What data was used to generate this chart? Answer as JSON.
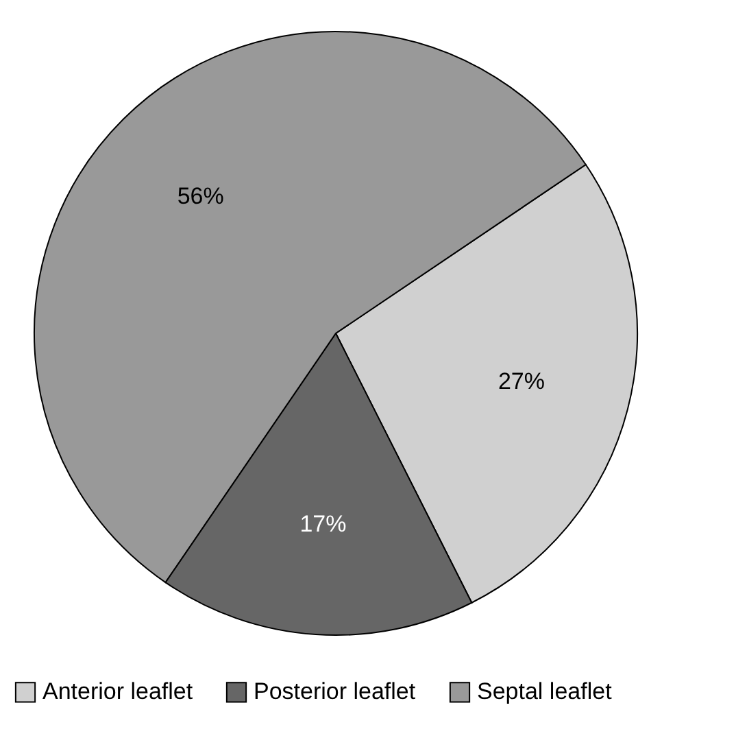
{
  "chart_data": {
    "type": "pie",
    "categories": [
      "Anterior leaflet",
      "Posterior leaflet",
      "Septal leaflet"
    ],
    "values": [
      27,
      17,
      56
    ],
    "colors": [
      "#d0d0d0",
      "#666666",
      "#999999"
    ],
    "value_labels": [
      "27%",
      "17%",
      "56%"
    ],
    "legend": "bottom"
  }
}
